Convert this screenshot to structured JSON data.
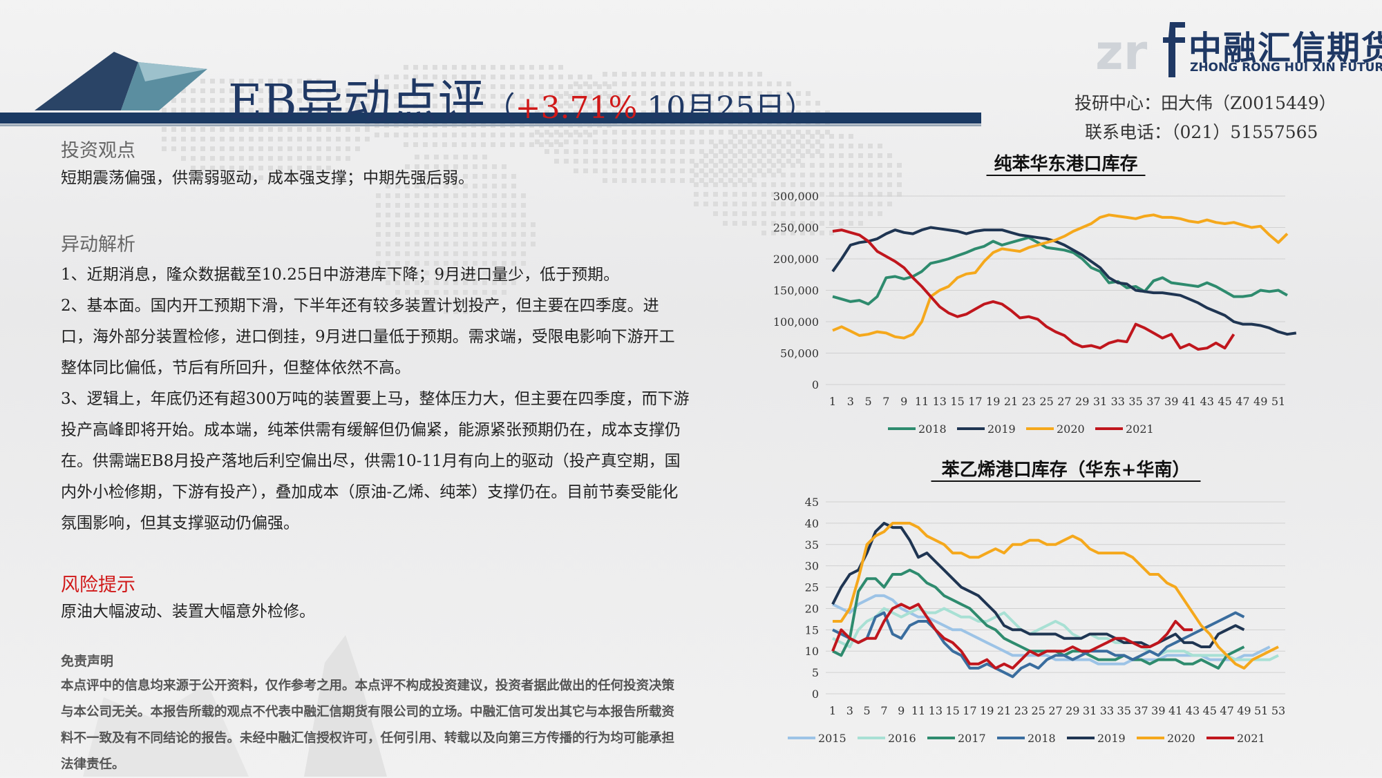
{
  "header": {
    "title_main": "EB异动点评",
    "title_paren_open": "（",
    "title_change": "+3.71%",
    "title_date": " 10月25日",
    "title_paren_close": "）"
  },
  "logo": {
    "name_cn": "中融汇信期货",
    "name_en": "ZHONG RONG HUI XIN FUTURES",
    "brand_color": "#1f3864"
  },
  "contact": {
    "analyst": "投研中心：田大伟（Z0015449）",
    "phone": "联系电话：（021）51557565"
  },
  "view": {
    "heading": "投资观点",
    "text": "短期震荡偏强，供需弱驱动，成本强支撑；中期先强后弱。"
  },
  "analysis": {
    "heading": "异动解析",
    "p1": "1、近期消息，隆众数据截至10.25日中游港库下降；9月进口量少，低于预期。",
    "p2": "2、基本面。国内开工预期下滑，下半年还有较多装置计划投产，但主要在四季度。进口，海外部分装置检修，进口倒挂，9月进口量低于预期。需求端，受限电影响下游开工整体同比偏低，节后有所回升，但整体依然不高。",
    "p3": "3、逻辑上，年底仍还有超300万吨的装置要上马，整体压力大，但主要在四季度，而下游投产高峰即将开始。成本端，纯苯供需有缓解但仍偏紧，能源紧张预期仍在，成本支撑仍在。供需端EB8月投产落地后利空偏出尽，供需10-11月有向上的驱动（投产真空期，国内外小检修期，下游有投产），叠加成本（原油-乙烯、纯苯）支撑仍在。目前节奏受能化氛围影响，但其支撑驱动仍偏强。"
  },
  "risk": {
    "heading": "风险提示",
    "text": "原油大幅波动、装置大幅意外检修。"
  },
  "disclaimer": {
    "heading": "免责声明",
    "text": "本点评中的信息均来源于公开资料，仅作参考之用。本点评不构成投资建议，投资者据此做出的任何投资决策与本公司无关。本报告所载的观点不代表中融汇信期货有限公司的立场。中融汇信可发出其它与本报告所载资料不一致及有不同结论的报告。未经中融汇信授权许可，任何引用、转载以及向第三方传播的行为均可能承担法律责任。"
  },
  "chart_data": [
    {
      "type": "line",
      "title": "纯苯华东港口库存",
      "ylim": [
        0,
        300000
      ],
      "yticks": [
        "0",
        "50,000",
        "100,000",
        "150,000",
        "200,000",
        "250,000",
        "300,000"
      ],
      "xticks": [
        "1",
        "3",
        "5",
        "7",
        "9",
        "11",
        "13",
        "15",
        "17",
        "19",
        "21",
        "23",
        "25",
        "27",
        "29",
        "31",
        "33",
        "35",
        "37",
        "39",
        "41",
        "43",
        "45",
        "47",
        "49",
        "51"
      ],
      "legend_position": "bottom",
      "grid": true,
      "series": [
        {
          "name": "2018",
          "color": "#2e8b6e",
          "values": [
            140000,
            136000,
            132000,
            134000,
            128000,
            140000,
            170000,
            172000,
            168000,
            172000,
            180000,
            193000,
            196000,
            200000,
            205000,
            210000,
            216000,
            220000,
            228000,
            222000,
            226000,
            230000,
            234000,
            226000,
            218000,
            216000,
            214000,
            210000,
            200000,
            186000,
            180000,
            162000,
            164000,
            154000,
            156000,
            148000,
            165000,
            170000,
            162000,
            160000,
            158000,
            156000,
            162000,
            156000,
            148000,
            140000,
            140000,
            142000,
            150000,
            148000,
            150000,
            142000
          ]
        },
        {
          "name": "2019",
          "color": "#1f3552",
          "values": [
            180000,
            200000,
            222000,
            226000,
            228000,
            232000,
            240000,
            246000,
            242000,
            240000,
            246000,
            250000,
            248000,
            246000,
            244000,
            240000,
            244000,
            246000,
            246000,
            246000,
            242000,
            238000,
            236000,
            234000,
            232000,
            228000,
            222000,
            214000,
            206000,
            196000,
            186000,
            170000,
            162000,
            160000,
            150000,
            148000,
            146000,
            146000,
            144000,
            142000,
            136000,
            130000,
            122000,
            116000,
            110000,
            100000,
            96000,
            96000,
            94000,
            90000,
            84000,
            80000,
            82000
          ]
        },
        {
          "name": "2020",
          "color": "#f5a81c",
          "values": [
            86000,
            92000,
            85000,
            78000,
            80000,
            84000,
            82000,
            76000,
            74000,
            80000,
            100000,
            140000,
            150000,
            156000,
            170000,
            176000,
            178000,
            196000,
            210000,
            216000,
            214000,
            212000,
            218000,
            222000,
            226000,
            230000,
            236000,
            244000,
            250000,
            256000,
            266000,
            270000,
            268000,
            266000,
            264000,
            268000,
            270000,
            266000,
            266000,
            264000,
            260000,
            258000,
            262000,
            258000,
            256000,
            258000,
            254000,
            250000,
            252000,
            238000,
            226000,
            240000
          ]
        },
        {
          "name": "2021",
          "color": "#c0161d",
          "values": [
            244000,
            246000,
            242000,
            238000,
            228000,
            212000,
            204000,
            196000,
            186000,
            170000,
            156000,
            140000,
            124000,
            114000,
            108000,
            112000,
            120000,
            128000,
            132000,
            128000,
            118000,
            106000,
            108000,
            104000,
            92000,
            84000,
            78000,
            66000,
            60000,
            62000,
            58000,
            66000,
            70000,
            68000,
            96000,
            90000,
            82000,
            74000,
            80000,
            58000,
            64000,
            56000,
            58000,
            66000,
            58000,
            80000
          ]
        }
      ]
    },
    {
      "type": "line",
      "title": "苯乙烯港口库存（华东+华南）",
      "ylim": [
        0,
        45
      ],
      "yticks": [
        "0",
        "5",
        "10",
        "15",
        "20",
        "25",
        "30",
        "35",
        "40",
        "45"
      ],
      "xticks": [
        "1",
        "3",
        "5",
        "7",
        "9",
        "11",
        "13",
        "15",
        "17",
        "19",
        "21",
        "23",
        "25",
        "27",
        "29",
        "31",
        "33",
        "35",
        "37",
        "39",
        "41",
        "43",
        "45",
        "47",
        "49",
        "51",
        "53"
      ],
      "legend_position": "bottom",
      "grid": true,
      "series": [
        {
          "name": "2015",
          "color": "#9cc3e6",
          "values": [
            21,
            20,
            19,
            21,
            22,
            23,
            23,
            22,
            20,
            19,
            18,
            18,
            17,
            16,
            15,
            15,
            14,
            13,
            12,
            11,
            10,
            9,
            9,
            9,
            9,
            9,
            8,
            8,
            8,
            8,
            8,
            7,
            7,
            7,
            7,
            8,
            8,
            8,
            8,
            9,
            9,
            9,
            9,
            9,
            8,
            8,
            8,
            8,
            9,
            9,
            10,
            11
          ]
        },
        {
          "name": "2016",
          "color": "#a8e0d4",
          "values": [
            13,
            12,
            11,
            15,
            17,
            18,
            20,
            19,
            18,
            19,
            20,
            19,
            19,
            20,
            19,
            18,
            18,
            17,
            17,
            18,
            19,
            17,
            15,
            14,
            15,
            16,
            17,
            16,
            14,
            13,
            14,
            13,
            13,
            12,
            12,
            12,
            11,
            10,
            9,
            10,
            10,
            10,
            9,
            9,
            9,
            9,
            9,
            8,
            8,
            8,
            8,
            8,
            9
          ]
        },
        {
          "name": "2017",
          "color": "#2e8b6e",
          "values": [
            10,
            9,
            13,
            24,
            27,
            27,
            25,
            28,
            28,
            29,
            28,
            26,
            25,
            23,
            22,
            21,
            20,
            18,
            16,
            15,
            13,
            12,
            11,
            10,
            10,
            10,
            10,
            9,
            10,
            10,
            9,
            8,
            8,
            8,
            9,
            8,
            8,
            7,
            8,
            8,
            8,
            7,
            7,
            8,
            7,
            6,
            9,
            10,
            11
          ]
        },
        {
          "name": "2018",
          "color": "#3a6d9e",
          "values": [
            15,
            14,
            13,
            12,
            13,
            18,
            19,
            14,
            13,
            16,
            17,
            17,
            15,
            12,
            10,
            9,
            6,
            6,
            7,
            6,
            5,
            4,
            6,
            7,
            6,
            8,
            9,
            9,
            8,
            9,
            10,
            10,
            10,
            9,
            9,
            8,
            9,
            10,
            9,
            11,
            12,
            13,
            14,
            15,
            16,
            17,
            18,
            19,
            18
          ]
        },
        {
          "name": "2019",
          "color": "#1f3552",
          "values": [
            21,
            25,
            28,
            29,
            33,
            38,
            40,
            39,
            39,
            36,
            32,
            33,
            31,
            29,
            27,
            25,
            24,
            23,
            21,
            19,
            16,
            15,
            15,
            14,
            14,
            14,
            14,
            13,
            13,
            13,
            14,
            14,
            14,
            13,
            12,
            12,
            12,
            11,
            12,
            13,
            14,
            12,
            12,
            11,
            11,
            14,
            15,
            16,
            15
          ]
        },
        {
          "name": "2020",
          "color": "#f5a81c",
          "values": [
            17,
            17,
            20,
            27,
            35,
            37,
            38,
            40,
            40,
            40,
            39,
            37,
            36,
            35,
            33,
            33,
            32,
            32,
            33,
            34,
            33,
            35,
            35,
            36,
            36,
            35,
            35,
            36,
            37,
            36,
            34,
            33,
            33,
            33,
            33,
            32,
            30,
            28,
            28,
            26,
            25,
            22,
            19,
            16,
            14,
            11,
            9,
            7,
            6,
            8,
            9,
            10,
            11
          ]
        },
        {
          "name": "2021",
          "color": "#c0161d",
          "values": [
            10,
            15,
            13,
            12,
            13,
            13,
            17,
            20,
            21,
            20,
            21,
            18,
            15,
            13,
            12,
            10,
            7,
            7,
            8,
            6,
            7,
            6,
            8,
            10,
            9,
            10,
            10,
            10,
            11,
            10,
            10,
            11,
            12,
            13,
            13,
            12,
            11,
            11,
            12,
            14,
            17,
            15,
            15
          ]
        }
      ]
    }
  ]
}
